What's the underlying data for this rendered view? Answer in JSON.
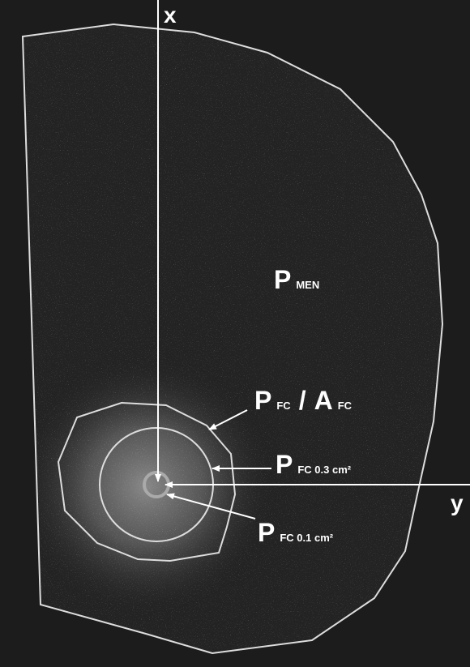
{
  "axes": {
    "x": "x",
    "y": "y"
  },
  "labels": [
    {
      "main": "P",
      "sub": "MEN"
    },
    {
      "main": "P",
      "sub": "FC",
      "separator": "/",
      "main2": "A",
      "sub2": "FC"
    },
    {
      "main": "P",
      "sub": "FC 0.3 cm²"
    },
    {
      "main": "P",
      "sub": "FC 0.1 cm²"
    }
  ]
}
